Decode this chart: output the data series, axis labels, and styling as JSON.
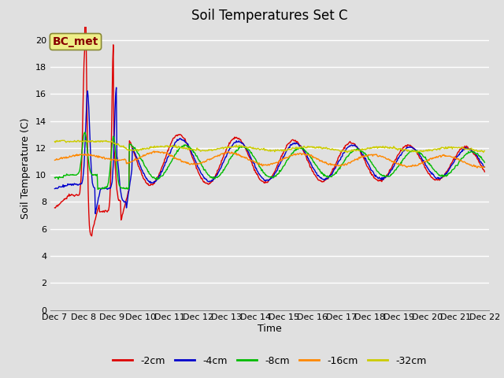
{
  "title": "Soil Temperatures Set C",
  "xlabel": "Time",
  "ylabel": "Soil Temperature (C)",
  "ylim": [
    0,
    21
  ],
  "yticks": [
    0,
    2,
    4,
    6,
    8,
    10,
    12,
    14,
    16,
    18,
    20
  ],
  "background_color": "#e0e0e0",
  "plot_bg_color": "#e0e0e0",
  "series_colors": [
    "#dd0000",
    "#0000cc",
    "#00bb00",
    "#ff8800",
    "#cccc00"
  ],
  "series_labels": [
    "-2cm",
    "-4cm",
    "-8cm",
    "-16cm",
    "-32cm"
  ],
  "annotation_text": "BC_met",
  "annotation_color": "#880000",
  "annotation_bg": "#eeee88",
  "x_tick_labels": [
    "Dec 7",
    "Dec 8",
    "Dec 9",
    "Dec 10",
    "Dec 11",
    "Dec 12",
    "Dec 13",
    "Dec 14",
    "Dec 15",
    "Dec 16",
    "Dec 17",
    "Dec 18",
    "Dec 19",
    "Dec 20",
    "Dec 21",
    "Dec 22"
  ],
  "n_points": 720,
  "title_fontsize": 12,
  "axis_fontsize": 9,
  "tick_fontsize": 8,
  "legend_fontsize": 9,
  "grid_color": "#ffffff",
  "grid_linewidth": 1.0,
  "line_width": 1.0
}
